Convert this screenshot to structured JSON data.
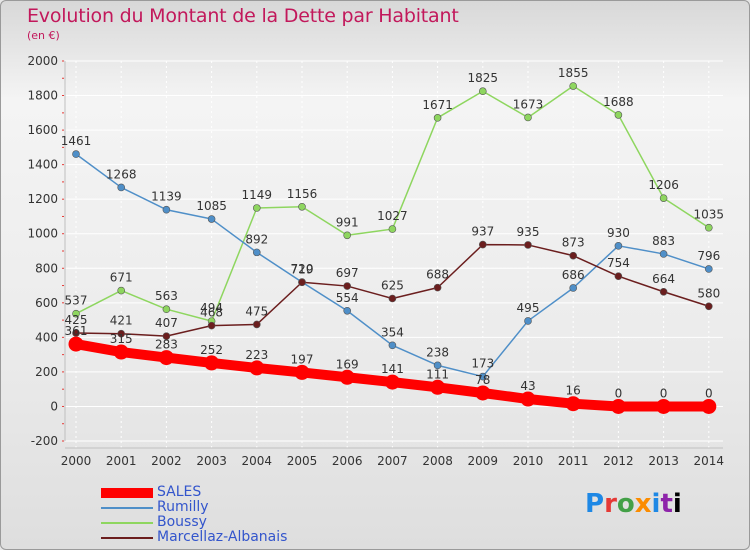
{
  "chart_data": {
    "type": "line",
    "title": "Evolution du Montant de la Dette par Habitant",
    "subtitle": "(en €)",
    "xlabel": "",
    "ylabel": "",
    "ylim": [
      -200,
      2000
    ],
    "yticks": [
      -200,
      0,
      200,
      400,
      600,
      800,
      1000,
      1200,
      1400,
      1600,
      1800,
      2000
    ],
    "categories": [
      "2000",
      "2001",
      "2002",
      "2003",
      "2004",
      "2005",
      "2006",
      "2007",
      "2008",
      "2009",
      "2010",
      "2011",
      "2012",
      "2013",
      "2014"
    ],
    "series": [
      {
        "name": "SALES",
        "color": "#ff0000",
        "values": [
          361,
          315,
          283,
          252,
          223,
          197,
          169,
          141,
          111,
          78,
          43,
          16,
          0,
          0,
          0
        ]
      },
      {
        "name": "Rumilly",
        "color": "#4f8fc8",
        "values": [
          1461,
          1268,
          1139,
          1085,
          892,
          720,
          554,
          354,
          238,
          173,
          495,
          686,
          930,
          883,
          796
        ]
      },
      {
        "name": "Boussy",
        "color": "#8ed65f",
        "values": [
          537,
          671,
          563,
          494,
          1149,
          1156,
          991,
          1027,
          1671,
          1825,
          1673,
          1855,
          1688,
          1206,
          1035
        ]
      },
      {
        "name": "Marcellaz-Albanais",
        "color": "#6b1e1e",
        "values": [
          425,
          421,
          407,
          468,
          475,
          719,
          697,
          625,
          688,
          937,
          935,
          873,
          754,
          664,
          580
        ]
      }
    ]
  },
  "logo": {
    "letters": [
      "P",
      "r",
      "o",
      "x",
      "i",
      "t",
      "i"
    ]
  }
}
